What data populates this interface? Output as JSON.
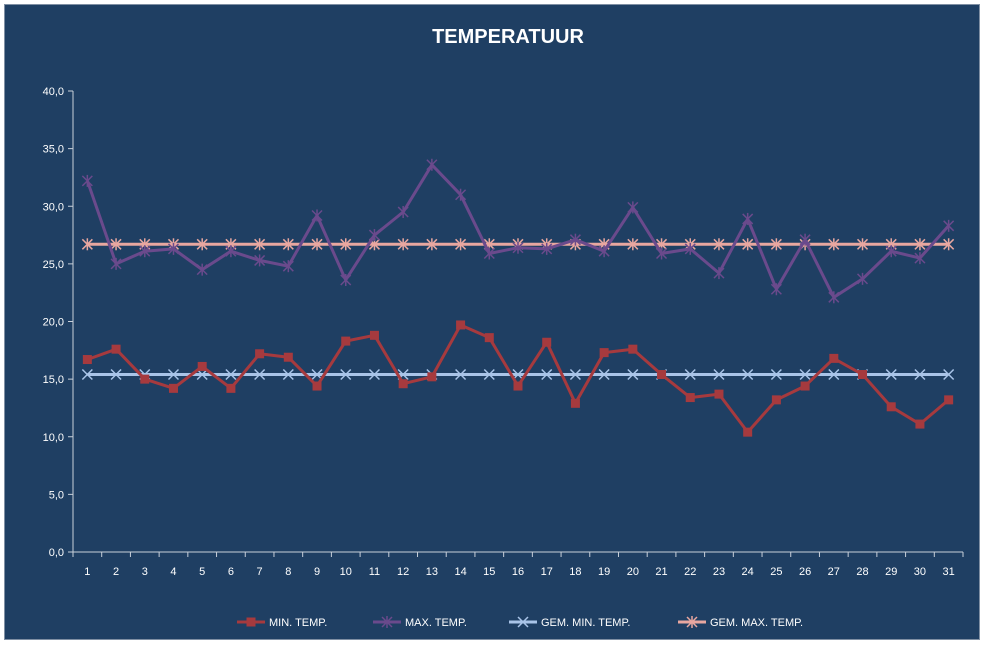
{
  "chart_data": {
    "type": "line",
    "title": "TEMPERATUUR",
    "xlabel": "",
    "ylabel": "",
    "x": [
      1,
      2,
      3,
      4,
      5,
      6,
      7,
      8,
      9,
      10,
      11,
      12,
      13,
      14,
      15,
      16,
      17,
      18,
      19,
      20,
      21,
      22,
      23,
      24,
      25,
      26,
      27,
      28,
      29,
      30,
      31
    ],
    "ylim": [
      0,
      40
    ],
    "yticks": [
      "0,0",
      "5,0",
      "10,0",
      "15,0",
      "20,0",
      "25,0",
      "30,0",
      "35,0",
      "40,0"
    ],
    "ytick_values": [
      0,
      5,
      10,
      15,
      20,
      25,
      30,
      35,
      40
    ],
    "grid": false,
    "legend_position": "bottom",
    "background": "#1f3f63",
    "series": [
      {
        "name": "MIN. TEMP.",
        "color": "#a63a3e",
        "marker": "square",
        "values": [
          16.7,
          17.6,
          15.0,
          14.2,
          16.1,
          14.2,
          17.2,
          16.9,
          14.4,
          18.3,
          18.8,
          14.6,
          15.2,
          19.7,
          18.6,
          14.4,
          18.2,
          12.9,
          17.3,
          17.6,
          15.4,
          13.4,
          13.7,
          10.4,
          13.2,
          14.4,
          16.8,
          15.4,
          12.6,
          11.1,
          13.2
        ]
      },
      {
        "name": "MAX. TEMP.",
        "color": "#6a4a8c",
        "marker": "x-star",
        "values": [
          32.2,
          25.0,
          26.1,
          26.3,
          24.5,
          26.1,
          25.3,
          24.8,
          29.2,
          23.6,
          27.5,
          29.5,
          33.6,
          31.0,
          25.9,
          26.4,
          26.3,
          27.1,
          26.1,
          29.9,
          25.9,
          26.3,
          24.2,
          28.9,
          22.8,
          27.1,
          22.1,
          23.7,
          26.1,
          25.5,
          28.3
        ]
      },
      {
        "name": "GEM. MIN. TEMP.",
        "color": "#a9c4e8",
        "marker": "x",
        "values": [
          15.4,
          15.4,
          15.4,
          15.4,
          15.4,
          15.4,
          15.4,
          15.4,
          15.4,
          15.4,
          15.4,
          15.4,
          15.4,
          15.4,
          15.4,
          15.4,
          15.4,
          15.4,
          15.4,
          15.4,
          15.4,
          15.4,
          15.4,
          15.4,
          15.4,
          15.4,
          15.4,
          15.4,
          15.4,
          15.4,
          15.4
        ]
      },
      {
        "name": "GEM. MAX. TEMP.",
        "color": "#e8a7a0",
        "marker": "star",
        "values": [
          26.7,
          26.7,
          26.7,
          26.7,
          26.7,
          26.7,
          26.7,
          26.7,
          26.7,
          26.7,
          26.7,
          26.7,
          26.7,
          26.7,
          26.7,
          26.7,
          26.7,
          26.7,
          26.7,
          26.7,
          26.7,
          26.7,
          26.7,
          26.7,
          26.7,
          26.7,
          26.7,
          26.7,
          26.7,
          26.7,
          26.7
        ]
      }
    ]
  }
}
